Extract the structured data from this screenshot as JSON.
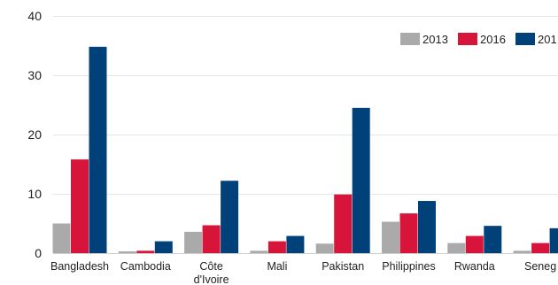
{
  "chart_data": {
    "type": "bar",
    "categories": [
      [
        "Bangladesh"
      ],
      [
        "Cambodia"
      ],
      [
        "Côte",
        "d'Ivoire"
      ],
      [
        "Mali"
      ],
      [
        "Pakistan"
      ],
      [
        "Philippines"
      ],
      [
        "Rwanda"
      ],
      [
        "Seneg"
      ]
    ],
    "series": [
      {
        "name": "2013",
        "color": "#aaaaaa",
        "values": [
          5.0,
          0.3,
          3.6,
          0.4,
          1.6,
          5.3,
          1.7,
          0.4
        ]
      },
      {
        "name": "2016",
        "color": "#d7153a",
        "values": [
          15.8,
          0.4,
          4.7,
          2.0,
          9.9,
          6.7,
          2.9,
          1.7
        ]
      },
      {
        "name": "201",
        "color": "#00417a",
        "values": [
          34.8,
          2.0,
          12.2,
          2.9,
          24.5,
          8.8,
          4.6,
          4.2
        ]
      }
    ],
    "yticks": [
      "0",
      "10",
      "20",
      "30",
      "40"
    ],
    "ylim": [
      0,
      40
    ],
    "grid": true,
    "legend_position": "top-right"
  }
}
